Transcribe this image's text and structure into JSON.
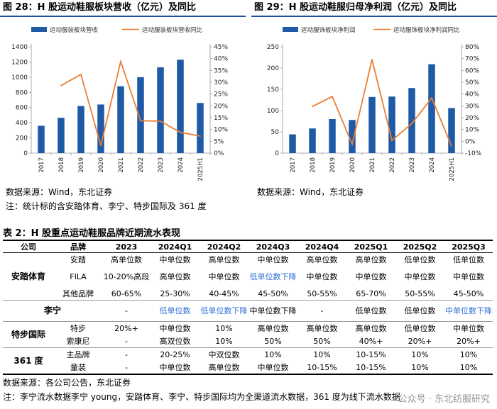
{
  "figures": [
    {
      "title": "图 28：H 股运动鞋服板块营收（亿元）及同比",
      "source": "数据来源：Wind，东北证券",
      "note": "注：统计标的含安踏体育、李宁、特步国际及 361 度",
      "chart_data": {
        "type": "bar",
        "categories": [
          "2017",
          "2018",
          "2019",
          "2020",
          "2021",
          "2022",
          "2023",
          "2024",
          "2025H1"
        ],
        "left_axis": {
          "ylim": [
            0,
            1400
          ],
          "ticks": [
            "0",
            "200",
            "400",
            "600",
            "800",
            "1000",
            "1200",
            "1400"
          ]
        },
        "right_axis": {
          "ylim": [
            0,
            45
          ],
          "ticks": [
            "0%",
            "5%",
            "10%",
            "15%",
            "20%",
            "25%",
            "30%",
            "35%",
            "40%",
            "45%"
          ]
        },
        "series": [
          {
            "name": "运动服装板块营收",
            "axis": "left",
            "kind": "bar",
            "values": [
              360,
              465,
              620,
              640,
              880,
              1000,
              1130,
              1230,
              660
            ]
          },
          {
            "name": "运动服装板块营收同比",
            "axis": "right",
            "kind": "line",
            "values": [
              null,
              28.6,
              33.3,
              3.2,
              38.8,
              13.7,
              13.5,
              8.8,
              7.2
            ]
          }
        ],
        "legend": "top",
        "colors": {
          "bar": "#1f5aa6",
          "line": "#ed7d31"
        }
      }
    },
    {
      "title": "图 29：H 股运动鞋服归母净利润（亿元）及同比",
      "source": "数据来源：Wind，东北证券",
      "chart_data": {
        "type": "bar",
        "categories": [
          "2017",
          "2018",
          "2019",
          "2020",
          "2021",
          "2022",
          "2023",
          "2024",
          "2025H1"
        ],
        "left_axis": {
          "ylim": [
            0,
            250
          ],
          "ticks": [
            "0",
            "50",
            "100",
            "150",
            "200",
            "250"
          ]
        },
        "right_axis": {
          "ylim": [
            -10,
            80
          ],
          "ticks": [
            "-10%",
            "0%",
            "10%",
            "20%",
            "30%",
            "40%",
            "50%",
            "60%",
            "70%",
            "80%"
          ]
        },
        "series": [
          {
            "name": "运动服饰板块净利润",
            "axis": "left",
            "kind": "bar",
            "values": [
              44,
              58,
              80,
              78,
              132,
              133,
              153,
              209,
              106
            ]
          },
          {
            "name": "运动服饰板块净利润同比",
            "axis": "right",
            "kind": "line",
            "values": [
              null,
              29.5,
              37.9,
              -2.5,
              69.2,
              0.8,
              15.0,
              36.6,
              -4.0
            ]
          }
        ],
        "legend": "top",
        "colors": {
          "bar": "#1f5aa6",
          "line": "#ed7d31"
        }
      }
    }
  ],
  "table": {
    "title": "表 2：H 股重点运动鞋服品牌近期流水表现",
    "headers": [
      "公司",
      "品牌",
      "2023",
      "2024Q1",
      "2024Q2",
      "2024Q3",
      "2024Q4",
      "2025Q1",
      "2025Q2",
      "2025Q3"
    ],
    "companies": {
      "anta": "安踏体育",
      "lining": "李宁",
      "xtep": "特步国际",
      "d361": "361 度"
    },
    "rows": [
      {
        "brand": "安踏",
        "cells": [
          "高单位数",
          "中单位数",
          "高单位数",
          "中单位数",
          "高单位数",
          "高单位数",
          "低单位数",
          "低单位数"
        ]
      },
      {
        "brand": "FILA",
        "cells": [
          "10-20%高段",
          "高单位数",
          "中单位数",
          "低单位数下降",
          "中单位数",
          "中单位数",
          "中单位数",
          "中单位数"
        ]
      },
      {
        "brand": "其他品牌",
        "cells": [
          "60-65%",
          "25-30%",
          "40-45%",
          "45-50%",
          "50-55%",
          "65-70%",
          "50-55%",
          "45-50%"
        ]
      },
      {
        "brand": "",
        "cells": [
          "-",
          "低单位数",
          "低单位数下降",
          "中单位数下降",
          "-",
          "低单位数",
          "低单位数",
          "中单位数下降"
        ]
      },
      {
        "brand": "特步",
        "cells": [
          "20%+",
          "中单位数",
          "10%",
          "高单位数",
          "高单位数",
          "高单位数",
          "低单位数",
          "中单位数"
        ]
      },
      {
        "brand": "索康尼",
        "cells": [
          "-",
          "高双位数",
          "10%",
          "50%",
          "50%",
          "40%+",
          "20%+",
          "20%+"
        ]
      },
      {
        "brand": "主品牌",
        "cells": [
          "-",
          "20-25%",
          "中双位数",
          "10%",
          "10%",
          "10-15%",
          "10%",
          "10%"
        ]
      },
      {
        "brand": "童装",
        "cells": [
          "-",
          "中单位数",
          "高单位数",
          "中单位数",
          "10-15%",
          "10-15%",
          "10%",
          "10%"
        ]
      }
    ],
    "source": "数据来源：各公司公告，东北证券",
    "note": "注：李宁流水数据李宁 young，安踏体育、李宁、特步国际均为全渠道流水数据，361 度为线下流水数据"
  },
  "watermark": "公众号 · 东北纺服研究",
  "highlight_cells": [
    "1.3",
    "3.1",
    "3.2",
    "3.7"
  ]
}
